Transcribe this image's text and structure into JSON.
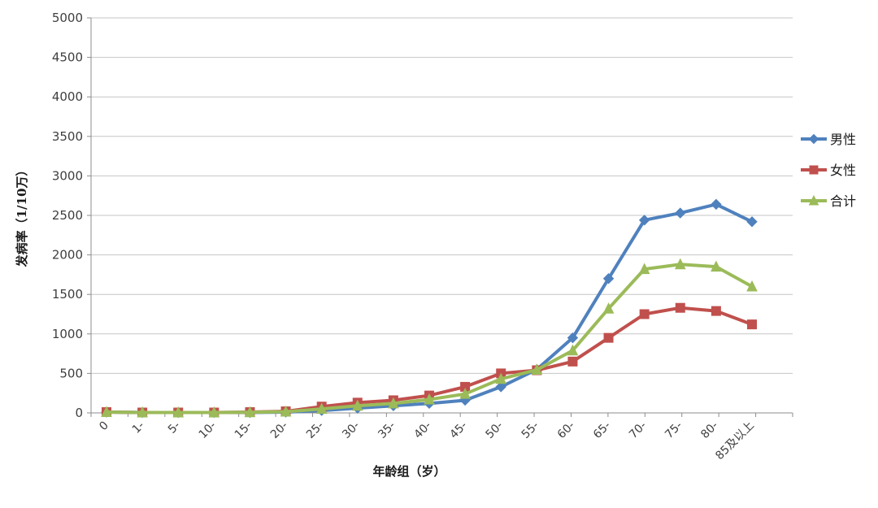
{
  "chart_data": {
    "type": "line",
    "title": "",
    "xlabel": "年龄组（岁）",
    "ylabel": "发病率（1/10万）",
    "ylim": [
      0,
      5000
    ],
    "ytick_step": 500,
    "grid": true,
    "legend_position": "right",
    "categories": [
      "0",
      "1-",
      "5-",
      "10-",
      "15-",
      "20-",
      "25-",
      "30-",
      "35-",
      "40-",
      "45-",
      "50-",
      "55-",
      "60-",
      "65-",
      "70-",
      "75-",
      "80-",
      "85及以上"
    ],
    "series": [
      {
        "name": "男性",
        "color": "#4F81BD",
        "marker": "diamond",
        "values": [
          10,
          5,
          5,
          5,
          5,
          10,
          30,
          60,
          90,
          120,
          160,
          330,
          550,
          950,
          1700,
          2440,
          2530,
          2640,
          2420
        ]
      },
      {
        "name": "女性",
        "color": "#C0504D",
        "marker": "square",
        "values": [
          10,
          5,
          5,
          5,
          10,
          20,
          80,
          130,
          160,
          220,
          330,
          500,
          540,
          650,
          950,
          1250,
          1330,
          1290,
          1120
        ]
      },
      {
        "name": "合计",
        "color": "#9BBB59",
        "marker": "triangle",
        "values": [
          10,
          5,
          5,
          5,
          8,
          15,
          50,
          90,
          120,
          170,
          240,
          430,
          545,
          790,
          1320,
          1820,
          1880,
          1850,
          1600
        ]
      }
    ],
    "colors": {
      "gridline": "#C6C6C6",
      "axis_line": "#8C8C8C",
      "tick_text": "#3F3F3F"
    }
  }
}
